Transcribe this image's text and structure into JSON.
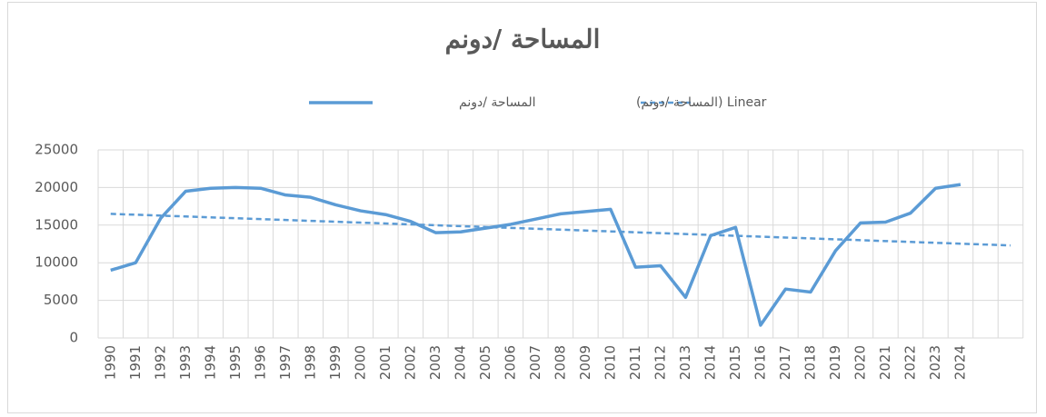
{
  "chart_data": {
    "type": "line",
    "title": "المساحة /دونم",
    "categories": [
      "1990",
      "1991",
      "1992",
      "1993",
      "1994",
      "1995",
      "1996",
      "1997",
      "1998",
      "1999",
      "2000",
      "2001",
      "2002",
      "2003",
      "2004",
      "2005",
      "2006",
      "2007",
      "2008",
      "2009",
      "2010",
      "2011",
      "2012",
      "2013",
      "2014",
      "2015",
      "2016",
      "2017",
      "2018",
      "2019",
      "2020",
      "2021",
      "2022",
      "2023",
      "2024",
      null,
      null
    ],
    "series": [
      {
        "name": "المساحة /دونم",
        "color": "#5b9bd5",
        "dash": false,
        "values": [
          9000,
          10000,
          15900,
          19500,
          19900,
          20000,
          19900,
          19000,
          18700,
          17700,
          16900,
          16400,
          15500,
          14000,
          14100,
          14600,
          15100,
          15800,
          16500,
          16800,
          17100,
          9400,
          9600,
          5400,
          13600,
          14700,
          1700,
          6500,
          6100,
          11600,
          15300,
          15400,
          16600,
          19900,
          20400,
          null,
          null
        ]
      },
      {
        "name": "Linear (المساحة /دونم)",
        "color": "#5b9bd5",
        "dash": true,
        "values": [
          16500,
          16383,
          16267,
          16150,
          16033,
          15917,
          15800,
          15683,
          15567,
          15450,
          15333,
          15217,
          15100,
          14983,
          14867,
          14750,
          14633,
          14517,
          14400,
          14283,
          14167,
          14050,
          13933,
          13817,
          13700,
          13583,
          13467,
          13350,
          13233,
          13117,
          13000,
          12883,
          12767,
          12650,
          12533,
          12417,
          12300
        ]
      }
    ],
    "ylim": [
      0,
      25000
    ],
    "yticks": [
      0,
      5000,
      10000,
      15000,
      20000,
      25000
    ],
    "grid": true
  }
}
